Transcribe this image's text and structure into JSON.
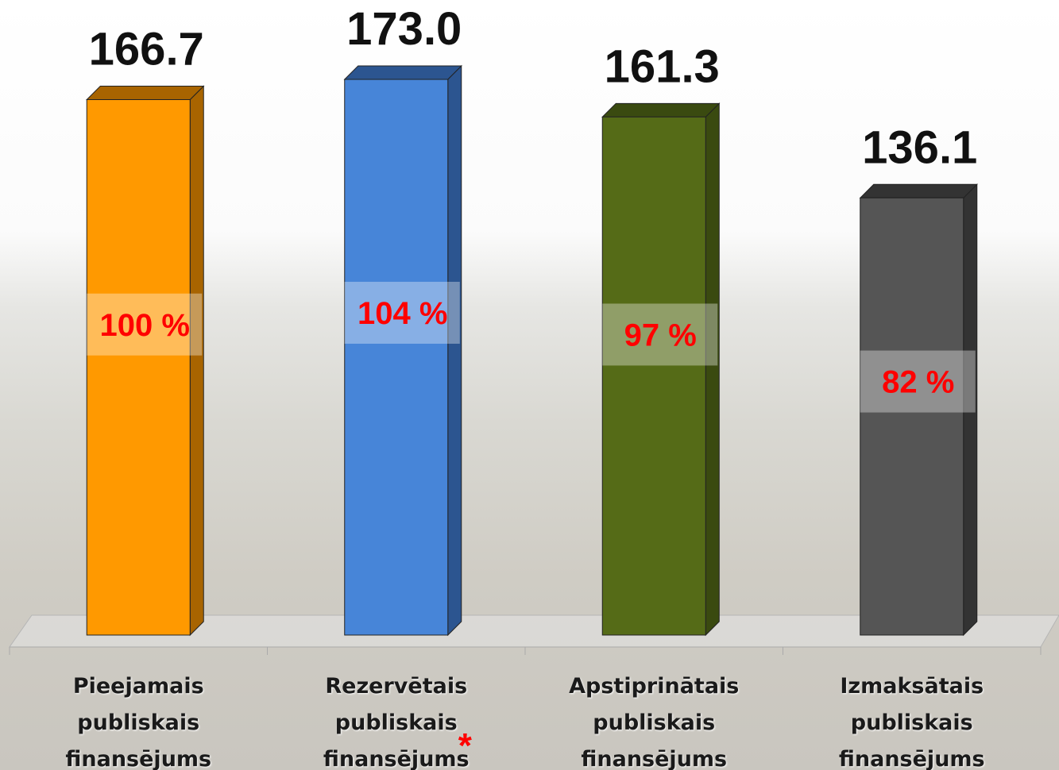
{
  "chart_data": {
    "type": "bar3d",
    "categories": [
      "Pieejamais publiskais finansējums",
      "Rezervētais publiskais finansējums",
      "Apstiprinātais publiskais finansējums",
      "Izmaksātais publiskais finansējums"
    ],
    "values": [
      166.7,
      173.0,
      161.3,
      136.1
    ],
    "value_labels": [
      "166.7",
      "173.0",
      "161.3",
      "136.1"
    ],
    "colors": [
      "#ff9900",
      "#4785d8",
      "#556b17",
      "#555555"
    ],
    "side_colors": [
      "#a86400",
      "#2c5590",
      "#3a4a10",
      "#333333"
    ],
    "shares": {
      "values": [
        100,
        104,
        97,
        82
      ],
      "value_labels": [
        "100 %",
        "104 %",
        "97 %",
        "82 %"
      ],
      "color": "#ff0000"
    },
    "annotation": {
      "category": 1,
      "text": "*"
    }
  }
}
